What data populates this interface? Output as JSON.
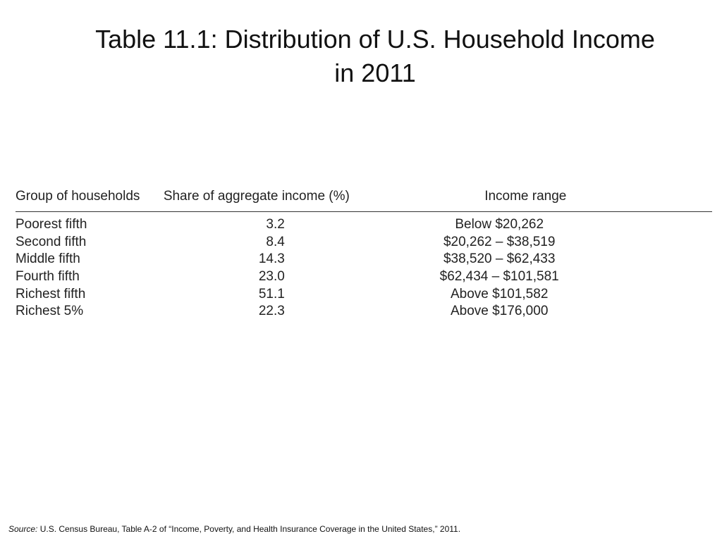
{
  "title": {
    "line1": "Table 11.1: Distribution of U.S. Household Income",
    "line2": "in 2011"
  },
  "table": {
    "headers": {
      "group": "Group of households",
      "share": "Share of aggregate income (%)",
      "range": "Income range"
    },
    "rows": [
      {
        "group": "Poorest fifth",
        "share": "3.2",
        "range": "Below $20,262"
      },
      {
        "group": "Second fifth",
        "share": "8.4",
        "range": "$20,262 – $38,519"
      },
      {
        "group": "Middle fifth",
        "share": "14.3",
        "range": "$38,520 – $62,433"
      },
      {
        "group": "Fourth fifth",
        "share": "23.0",
        "range": "$62,434 – $101,581"
      },
      {
        "group": "Richest fifth",
        "share": "51.1",
        "range": "Above $101,582"
      },
      {
        "group": "Richest 5%",
        "share": "22.3",
        "range": "Above $176,000"
      }
    ]
  },
  "source": {
    "label": "Source:",
    "text": "U.S. Census Bureau, Table A-2 of “Income, Poverty, and Health Insurance Coverage in the United States,” 2011."
  }
}
